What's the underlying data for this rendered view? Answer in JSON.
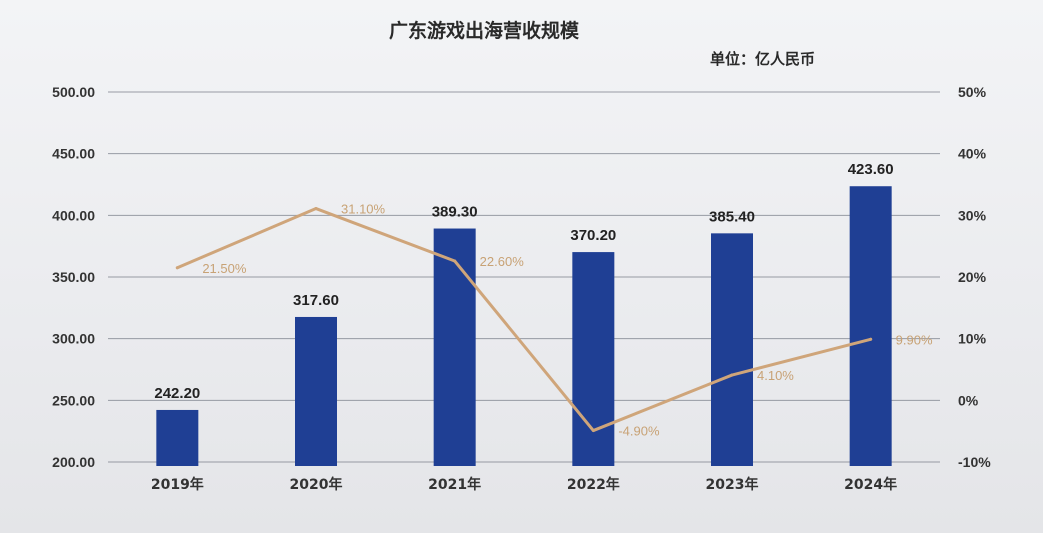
{
  "colors": {
    "bar": "#1f3f94",
    "line": "#cfa57a",
    "grid": "#7a7f8a",
    "text": "#2a2a2a"
  },
  "chart_data": {
    "type": "bar",
    "title": "广东游戏出海营收规模",
    "unit_label": "单位：亿人民币",
    "categories": [
      "2019年",
      "2020年",
      "2021年",
      "2022年",
      "2023年",
      "2024年"
    ],
    "series": [
      {
        "type": "bar",
        "axis": "left",
        "values": [
          242.2,
          317.6,
          389.3,
          370.2,
          385.4,
          423.6
        ],
        "labels": [
          "242.20",
          "317.60",
          "389.30",
          "370.20",
          "385.40",
          "423.60"
        ]
      },
      {
        "type": "line",
        "axis": "right",
        "values": [
          21.5,
          31.1,
          22.6,
          -4.9,
          4.1,
          9.9
        ],
        "labels": [
          "21.50%",
          "31.10%",
          "22.60%",
          "-4.90%",
          "4.10%",
          "9.90%"
        ]
      }
    ],
    "y_left": {
      "min": 200,
      "max": 500,
      "ticks": [
        "500.00",
        "450.00",
        "400.00",
        "350.00",
        "300.00",
        "250.00",
        "200.00"
      ]
    },
    "y_right": {
      "min": -10,
      "max": 50,
      "ticks": [
        "50%",
        "40%",
        "30%",
        "20%",
        "10%",
        "0%",
        "-10%"
      ]
    },
    "grid": true,
    "legend": "none"
  }
}
